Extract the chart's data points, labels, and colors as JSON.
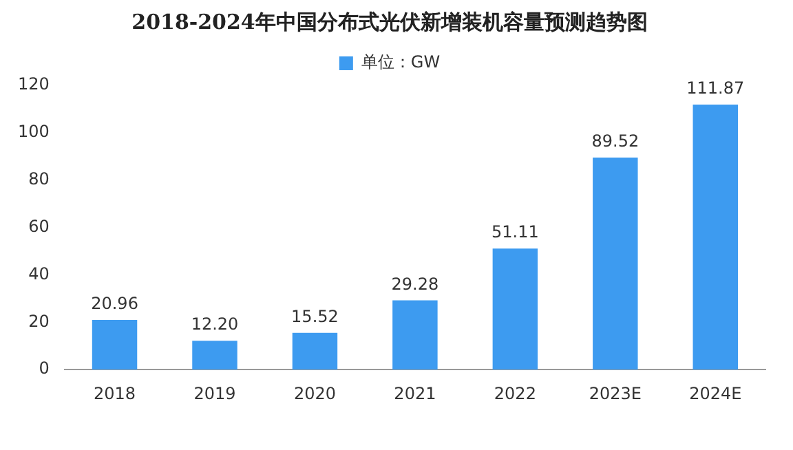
{
  "chart_data": {
    "type": "bar",
    "title": "2018-2024年中国分布式光伏新增装机容量预测趋势图",
    "categories": [
      "2018",
      "2019",
      "2020",
      "2021",
      "2022",
      "2023E",
      "2024E"
    ],
    "series": [
      {
        "name": "单位：GW",
        "color": "#3d9bf0",
        "values": [
          20.96,
          12.2,
          15.52,
          29.28,
          51.11,
          89.52,
          111.87
        ],
        "value_labels": [
          "20.96",
          "12.20",
          "15.52",
          "29.28",
          "51.11",
          "89.52",
          "111.87"
        ]
      }
    ],
    "ylim": [
      0,
      120
    ],
    "yticks": [
      0,
      20,
      40,
      60,
      80,
      100,
      120
    ],
    "grid": false,
    "legend": "top"
  }
}
